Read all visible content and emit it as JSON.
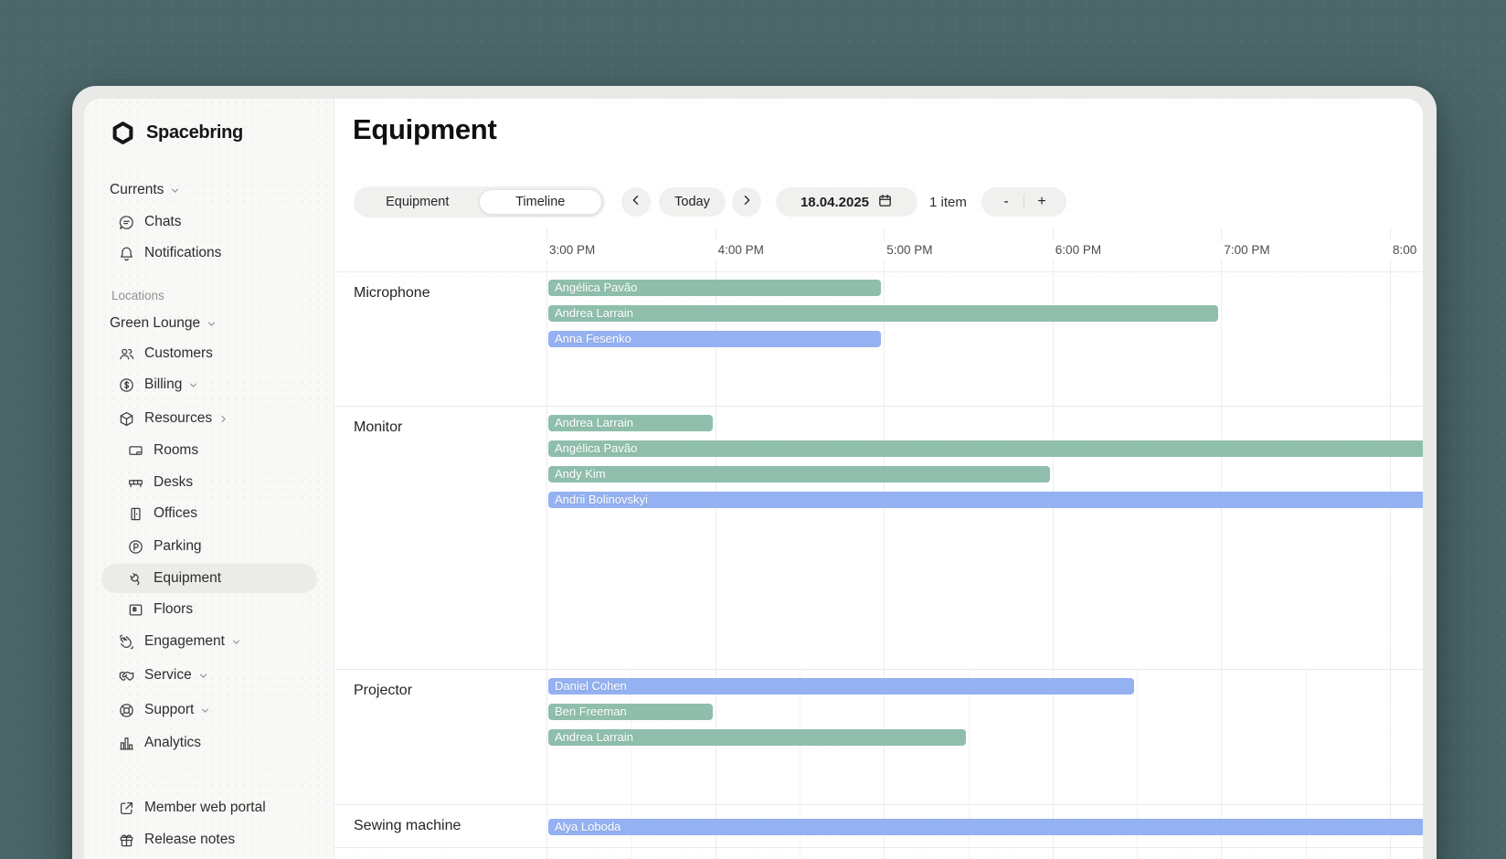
{
  "brand": {
    "name": "Spacebring"
  },
  "sidebar": {
    "sections": [
      {
        "label": "Currents",
        "icon": null,
        "chevron": "down",
        "kind": "top"
      },
      {
        "label": "Chats",
        "icon": "chat",
        "chevron": null,
        "kind": "item"
      },
      {
        "label": "Notifications",
        "icon": "bell",
        "chevron": null,
        "kind": "item"
      },
      {
        "label": "Locations",
        "icon": null,
        "chevron": null,
        "kind": "section"
      },
      {
        "label": "Green Lounge",
        "icon": null,
        "chevron": "down",
        "kind": "top"
      },
      {
        "label": "Customers",
        "icon": "people",
        "chevron": null,
        "kind": "item"
      },
      {
        "label": "Billing",
        "icon": "dollar",
        "chevron": "down",
        "kind": "item"
      },
      {
        "label": "Resources",
        "icon": "box",
        "chevron": "right",
        "kind": "item"
      },
      {
        "label": "Rooms",
        "icon": "room",
        "chevron": null,
        "kind": "subitem"
      },
      {
        "label": "Desks",
        "icon": "desk",
        "chevron": null,
        "kind": "subitem"
      },
      {
        "label": "Offices",
        "icon": "door",
        "chevron": null,
        "kind": "subitem"
      },
      {
        "label": "Parking",
        "icon": "parking",
        "chevron": null,
        "kind": "subitem"
      },
      {
        "label": "Equipment",
        "icon": "plug",
        "chevron": null,
        "kind": "subitem",
        "selected": true
      },
      {
        "label": "Floors",
        "icon": "floor",
        "chevron": null,
        "kind": "subitem"
      },
      {
        "label": "Engagement",
        "icon": "hand",
        "chevron": "down",
        "kind": "item"
      },
      {
        "label": "Service",
        "icon": "handshake",
        "chevron": "down",
        "kind": "item"
      },
      {
        "label": "Support",
        "icon": "lifebuoy",
        "chevron": "down",
        "kind": "item"
      },
      {
        "label": "Analytics",
        "icon": "chart",
        "chevron": null,
        "kind": "item"
      }
    ],
    "footer": [
      {
        "label": "Member web portal",
        "icon": "external"
      },
      {
        "label": "Release notes",
        "icon": "gift"
      }
    ]
  },
  "header": {
    "title": "Equipment"
  },
  "toolbar": {
    "view_switcher": [
      {
        "label": "Equipment",
        "selected": false
      },
      {
        "label": "Timeline",
        "selected": true
      }
    ],
    "today_label": "Today",
    "date_value": "18.04.2025",
    "items_count": "1 item",
    "zoom_out_label": "-",
    "zoom_in_label": "+"
  },
  "timeline": {
    "hours": [
      {
        "label": "3:00 PM",
        "t": 15
      },
      {
        "label": "4:00 PM",
        "t": 16
      },
      {
        "label": "5:00 PM",
        "t": 17
      },
      {
        "label": "6:00 PM",
        "t": 18
      },
      {
        "label": "7:00 PM",
        "t": 19
      },
      {
        "label": "8:00",
        "t": 20
      }
    ],
    "colors": {
      "green": "#8fbfac",
      "blue": "#94b1f1"
    },
    "rows": [
      {
        "name": "Microphone",
        "bookings": [
          {
            "guest": "Angélica Pavão",
            "start": 15,
            "end": 17,
            "color": "green"
          },
          {
            "guest": "Andrea Larrain",
            "start": 15,
            "end": 19,
            "color": "green"
          },
          {
            "guest": "Anna Fesenko",
            "start": 15,
            "end": 17,
            "color": "blue"
          }
        ]
      },
      {
        "name": "Monitor",
        "bookings": [
          {
            "guest": "Andrea Larrain",
            "start": 15,
            "end": 16,
            "color": "green"
          },
          {
            "guest": "Angélica Pavão",
            "start": 15,
            "end": 20.4,
            "color": "green",
            "clipped": true
          },
          {
            "guest": "Andy Kim",
            "start": 15,
            "end": 18,
            "color": "green"
          },
          {
            "guest": "Andrii Bolinovskyi",
            "start": 15,
            "end": 20.4,
            "color": "blue",
            "clipped": true
          }
        ]
      },
      {
        "name": "Projector",
        "bookings": [
          {
            "guest": "Daniel Cohen",
            "start": 15,
            "end": 18.5,
            "color": "blue"
          },
          {
            "guest": "Ben Freeman",
            "start": 15,
            "end": 16,
            "color": "green"
          },
          {
            "guest": "Andrea Larrain",
            "start": 15,
            "end": 17.5,
            "color": "green"
          }
        ]
      },
      {
        "name": "Sewing machine",
        "bookings": [
          {
            "guest": "Alya Loboda",
            "start": 15,
            "end": 20.4,
            "color": "blue",
            "clipped": true
          }
        ]
      }
    ]
  }
}
